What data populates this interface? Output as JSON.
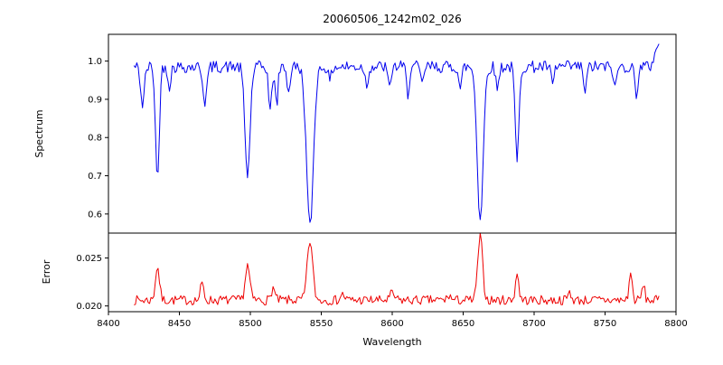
{
  "figure": {
    "background": "#ffffff",
    "frame_color": "#000000"
  },
  "chart_data": {
    "type": "line",
    "title": "20060506_1242m02_026",
    "xlabel": "Wavelength",
    "xlim": [
      8400,
      8800
    ],
    "x_ticks": [
      8400,
      8450,
      8500,
      8550,
      8600,
      8650,
      8700,
      8750,
      8800
    ],
    "x_start": 8418,
    "x_end": 8788,
    "x_step": 1,
    "grid": false,
    "legend": "none",
    "panels": [
      {
        "name": "spectrum",
        "ylabel": "Spectrum",
        "color": "#0000ee",
        "ylim": [
          0.55,
          1.07
        ],
        "y_ticks": [
          1.0,
          0.9,
          0.8,
          0.7,
          0.6
        ],
        "tick_decimals": 1,
        "baseline": 0.985,
        "noise": 0.016,
        "seed": 42,
        "features": [
          {
            "center": 8424,
            "amp": -0.1,
            "width": 1.3
          },
          {
            "center": 8434.5,
            "amp": -0.3,
            "width": 1.3
          },
          {
            "center": 8443,
            "amp": -0.05,
            "width": 1.0
          },
          {
            "center": 8468,
            "amp": -0.09,
            "width": 1.4
          },
          {
            "center": 8498,
            "amp": -0.285,
            "width": 1.8
          },
          {
            "center": 8514,
            "amp": -0.12,
            "width": 1.1
          },
          {
            "center": 8518.5,
            "amp": -0.1,
            "width": 1.0
          },
          {
            "center": 8527,
            "amp": -0.07,
            "width": 1.0
          },
          {
            "center": 8542,
            "amp": -0.42,
            "width": 2.4
          },
          {
            "center": 8556,
            "amp": -0.04,
            "width": 1.0
          },
          {
            "center": 8582,
            "amp": -0.05,
            "width": 1.0
          },
          {
            "center": 8598,
            "amp": -0.06,
            "width": 1.0
          },
          {
            "center": 8611,
            "amp": -0.07,
            "width": 1.0
          },
          {
            "center": 8621,
            "amp": -0.05,
            "width": 1.0
          },
          {
            "center": 8648,
            "amp": -0.06,
            "width": 1.0
          },
          {
            "center": 8662,
            "amp": -0.4,
            "width": 2.1
          },
          {
            "center": 8674,
            "amp": -0.06,
            "width": 1.0
          },
          {
            "center": 8688,
            "amp": -0.25,
            "width": 1.3
          },
          {
            "center": 8713,
            "amp": -0.05,
            "width": 1.0
          },
          {
            "center": 8736,
            "amp": -0.07,
            "width": 1.0
          },
          {
            "center": 8757,
            "amp": -0.06,
            "width": 1.0
          },
          {
            "center": 8772,
            "amp": -0.07,
            "width": 1.1
          },
          {
            "center": 8787,
            "amp": 0.06,
            "width": 2.0
          }
        ]
      },
      {
        "name": "error",
        "ylabel": "Error",
        "color": "#ee0000",
        "ylim": [
          0.0194,
          0.0276
        ],
        "y_ticks": [
          0.025,
          0.02
        ],
        "tick_decimals": 3,
        "baseline": 0.0206,
        "noise": 0.0005,
        "seed": 7,
        "features": [
          {
            "center": 8434.5,
            "amp": 0.0035,
            "width": 1.4
          },
          {
            "center": 8466,
            "amp": 0.0017,
            "width": 1.2
          },
          {
            "center": 8498,
            "amp": 0.0036,
            "width": 1.6
          },
          {
            "center": 8516,
            "amp": 0.0013,
            "width": 1.2
          },
          {
            "center": 8542,
            "amp": 0.0062,
            "width": 1.9
          },
          {
            "center": 8565,
            "amp": 0.0006,
            "width": 1.5
          },
          {
            "center": 8600,
            "amp": 0.0007,
            "width": 1.5
          },
          {
            "center": 8640,
            "amp": 0.0005,
            "width": 1.2
          },
          {
            "center": 8662,
            "amp": 0.0066,
            "width": 1.7
          },
          {
            "center": 8688,
            "amp": 0.0028,
            "width": 1.2
          },
          {
            "center": 8725,
            "amp": 0.0008,
            "width": 1.2
          },
          {
            "center": 8768,
            "amp": 0.0028,
            "width": 1.1
          },
          {
            "center": 8777,
            "amp": 0.0016,
            "width": 1.0
          }
        ]
      }
    ]
  }
}
